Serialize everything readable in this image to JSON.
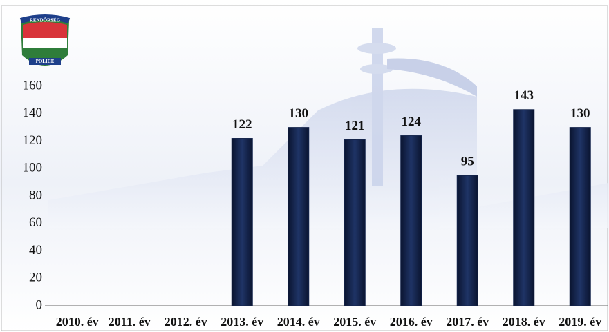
{
  "chart_data": {
    "type": "bar",
    "logo_text": [
      "RENDŐRSÉG",
      "POLICE"
    ],
    "categories": [
      "2010. év",
      "2011. év",
      "2012. év",
      "2013. év",
      "2014. év",
      "2015. év",
      "2016. év",
      "2017. év",
      "2018. év",
      "2019. év"
    ],
    "values": [
      null,
      null,
      null,
      122,
      130,
      121,
      124,
      95,
      143,
      130
    ],
    "color": "#13234a",
    "ylim": [
      0,
      160
    ],
    "yticks": [
      0,
      20,
      40,
      60,
      80,
      100,
      120,
      140,
      160
    ],
    "grid": false,
    "data_labels": true
  }
}
